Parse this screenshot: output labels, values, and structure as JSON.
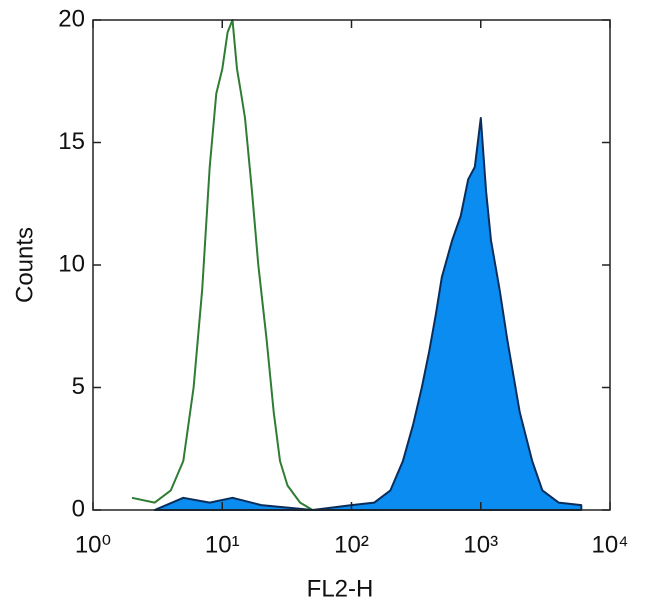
{
  "chart_data": {
    "type": "histogram-overlay",
    "xlabel": "FL2-H",
    "ylabel": "Counts",
    "xscale": "log",
    "xlim": [
      1,
      10000
    ],
    "xticks": [
      {
        "value": 1,
        "label": "10⁰"
      },
      {
        "value": 10,
        "label": "10¹"
      },
      {
        "value": 100,
        "label": "10²"
      },
      {
        "value": 1000,
        "label": "10³"
      },
      {
        "value": 10000,
        "label": "10⁴"
      }
    ],
    "ylim": [
      0,
      20
    ],
    "yticks": [
      0,
      5,
      10,
      15,
      20
    ],
    "series": [
      {
        "color": "#2e7d32",
        "fill": "none",
        "x": [
          2,
          3,
          4,
          5,
          6,
          7,
          8,
          9,
          10,
          11,
          12,
          13,
          14,
          15,
          17,
          19,
          22,
          25,
          28,
          32,
          40,
          50
        ],
        "values": [
          0.5,
          0.3,
          0.8,
          2,
          5,
          9,
          14,
          17,
          18,
          19.5,
          20,
          18,
          17,
          16,
          13,
          10,
          7,
          4,
          2,
          1,
          0.3,
          0
        ]
      },
      {
        "color": "#0a2d5c",
        "fill": "#0a8cf0",
        "x": [
          3,
          5,
          8,
          12,
          20,
          50,
          100,
          150,
          200,
          250,
          300,
          350,
          400,
          450,
          500,
          600,
          700,
          800,
          900,
          1000,
          1100,
          1200,
          1400,
          1600,
          2000,
          2500,
          3000,
          4000,
          6000
        ],
        "values": [
          0,
          0.5,
          0.3,
          0.5,
          0.2,
          0,
          0.2,
          0.3,
          0.8,
          2,
          3.5,
          5,
          6.5,
          8,
          9.5,
          11,
          12,
          13.5,
          14,
          16,
          13,
          11,
          9,
          7,
          4,
          2,
          0.8,
          0.3,
          0.2
        ]
      }
    ]
  }
}
